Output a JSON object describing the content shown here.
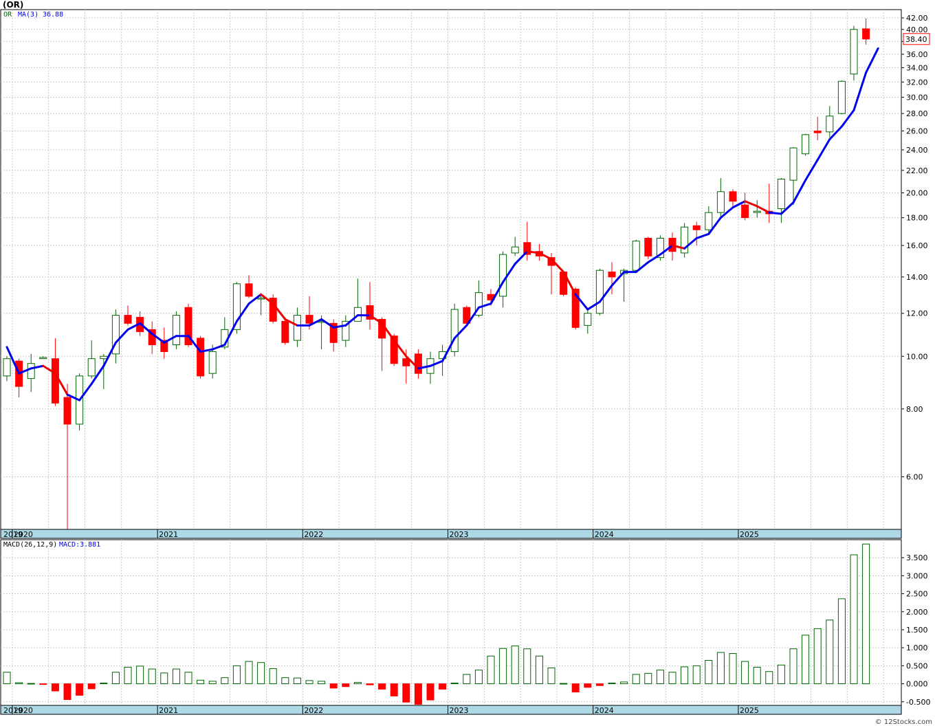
{
  "header": {
    "symbol": "(OR)"
  },
  "footer": {
    "watermark": "© 12Stocks.com"
  },
  "chart_data": [
    {
      "type": "candlestick",
      "legend": {
        "symbol": "OR",
        "ma_label": "MA(3)",
        "ma_value": "36.88"
      },
      "last_price_label": "38.40",
      "scale": "log",
      "ylim": [
        4.8,
        43.5
      ],
      "y_ticks": [
        "6.00",
        "8.00",
        "10.00",
        "12.00",
        "14.00",
        "16.00",
        "18.00",
        "20.00",
        "22.00",
        "24.00",
        "26.00",
        "28.00",
        "30.00",
        "32.00",
        "34.00",
        "36.00",
        "38.00",
        "40.00",
        "42.00"
      ],
      "x_labels": [
        "2019",
        "2020",
        "2021",
        "2022",
        "2023",
        "2024",
        "2025"
      ],
      "grid": true,
      "colors": {
        "up": "#006400",
        "down": "#ff0000",
        "ma_up": "#0000ee",
        "ma_down": "#ee0000",
        "band": "#add8e6"
      },
      "candles": [
        {
          "o": 9.2,
          "h": 10.0,
          "l": 9.0,
          "c": 9.9
        },
        {
          "o": 9.8,
          "h": 9.9,
          "l": 8.4,
          "c": 8.8
        },
        {
          "o": 9.1,
          "h": 10.1,
          "l": 8.6,
          "c": 9.7
        },
        {
          "o": 9.9,
          "h": 10.0,
          "l": 9.9,
          "c": 9.95
        },
        {
          "o": 9.9,
          "h": 10.8,
          "l": 8.1,
          "c": 8.2
        },
        {
          "o": 8.4,
          "h": 8.9,
          "l": 4.8,
          "c": 7.5
        },
        {
          "o": 7.5,
          "h": 9.3,
          "l": 7.3,
          "c": 9.2
        },
        {
          "o": 9.2,
          "h": 10.7,
          "l": 9.1,
          "c": 9.9
        },
        {
          "o": 9.9,
          "h": 10.1,
          "l": 8.7,
          "c": 10.0
        },
        {
          "o": 10.1,
          "h": 12.2,
          "l": 9.7,
          "c": 11.9
        },
        {
          "o": 11.9,
          "h": 12.4,
          "l": 11.4,
          "c": 11.5
        },
        {
          "o": 11.8,
          "h": 12.1,
          "l": 10.9,
          "c": 11.1
        },
        {
          "o": 11.2,
          "h": 11.6,
          "l": 10.1,
          "c": 10.5
        },
        {
          "o": 10.7,
          "h": 11.3,
          "l": 9.9,
          "c": 10.2
        },
        {
          "o": 10.5,
          "h": 12.1,
          "l": 10.3,
          "c": 11.9
        },
        {
          "o": 12.3,
          "h": 12.5,
          "l": 10.4,
          "c": 10.5
        },
        {
          "o": 10.8,
          "h": 10.9,
          "l": 9.1,
          "c": 9.2
        },
        {
          "o": 9.3,
          "h": 10.5,
          "l": 9.1,
          "c": 10.2
        },
        {
          "o": 10.4,
          "h": 11.8,
          "l": 10.3,
          "c": 11.2
        },
        {
          "o": 11.2,
          "h": 13.7,
          "l": 11.0,
          "c": 13.6
        },
        {
          "o": 13.6,
          "h": 14.1,
          "l": 12.8,
          "c": 12.9
        },
        {
          "o": 12.8,
          "h": 13.0,
          "l": 11.9,
          "c": 12.8
        },
        {
          "o": 12.8,
          "h": 13.0,
          "l": 11.5,
          "c": 11.6
        },
        {
          "o": 11.6,
          "h": 11.8,
          "l": 10.5,
          "c": 10.6
        },
        {
          "o": 10.7,
          "h": 12.3,
          "l": 10.4,
          "c": 11.9
        },
        {
          "o": 11.9,
          "h": 12.9,
          "l": 11.2,
          "c": 11.5
        },
        {
          "o": 11.6,
          "h": 11.9,
          "l": 10.3,
          "c": 11.6
        },
        {
          "o": 11.5,
          "h": 11.7,
          "l": 10.2,
          "c": 10.6
        },
        {
          "o": 10.7,
          "h": 11.9,
          "l": 10.4,
          "c": 11.6
        },
        {
          "o": 11.6,
          "h": 13.9,
          "l": 11.6,
          "c": 12.3
        },
        {
          "o": 12.4,
          "h": 13.7,
          "l": 11.2,
          "c": 11.7
        },
        {
          "o": 11.7,
          "h": 11.8,
          "l": 9.4,
          "c": 10.8
        },
        {
          "o": 10.9,
          "h": 11.0,
          "l": 9.6,
          "c": 9.7
        },
        {
          "o": 9.9,
          "h": 10.3,
          "l": 8.9,
          "c": 9.6
        },
        {
          "o": 10.1,
          "h": 10.3,
          "l": 9.1,
          "c": 9.3
        },
        {
          "o": 9.3,
          "h": 10.2,
          "l": 8.9,
          "c": 9.9
        },
        {
          "o": 9.9,
          "h": 10.5,
          "l": 9.2,
          "c": 10.2
        },
        {
          "o": 10.2,
          "h": 12.5,
          "l": 10.0,
          "c": 12.2
        },
        {
          "o": 12.3,
          "h": 12.4,
          "l": 11.4,
          "c": 11.5
        },
        {
          "o": 11.9,
          "h": 13.8,
          "l": 11.8,
          "c": 13.1
        },
        {
          "o": 13.0,
          "h": 13.3,
          "l": 12.4,
          "c": 12.7
        },
        {
          "o": 12.9,
          "h": 15.6,
          "l": 12.3,
          "c": 15.4
        },
        {
          "o": 15.5,
          "h": 16.6,
          "l": 15.3,
          "c": 15.9
        },
        {
          "o": 16.2,
          "h": 17.7,
          "l": 15.0,
          "c": 15.4
        },
        {
          "o": 15.6,
          "h": 16.1,
          "l": 15.0,
          "c": 15.3
        },
        {
          "o": 15.2,
          "h": 15.5,
          "l": 13.0,
          "c": 14.7
        },
        {
          "o": 14.3,
          "h": 14.3,
          "l": 12.9,
          "c": 13.0
        },
        {
          "o": 13.3,
          "h": 13.4,
          "l": 11.2,
          "c": 11.3
        },
        {
          "o": 11.4,
          "h": 12.2,
          "l": 11.0,
          "c": 12.0
        },
        {
          "o": 12.0,
          "h": 14.5,
          "l": 11.9,
          "c": 14.4
        },
        {
          "o": 14.3,
          "h": 14.9,
          "l": 13.0,
          "c": 14.0
        },
        {
          "o": 14.2,
          "h": 14.5,
          "l": 12.6,
          "c": 14.4
        },
        {
          "o": 14.4,
          "h": 16.4,
          "l": 14.3,
          "c": 16.3
        },
        {
          "o": 16.5,
          "h": 16.6,
          "l": 15.1,
          "c": 15.3
        },
        {
          "o": 15.2,
          "h": 16.7,
          "l": 15.0,
          "c": 16.5
        },
        {
          "o": 16.5,
          "h": 16.9,
          "l": 15.0,
          "c": 15.6
        },
        {
          "o": 15.5,
          "h": 17.6,
          "l": 15.2,
          "c": 17.3
        },
        {
          "o": 17.4,
          "h": 17.7,
          "l": 16.0,
          "c": 17.1
        },
        {
          "o": 17.1,
          "h": 18.9,
          "l": 16.9,
          "c": 18.4
        },
        {
          "o": 18.4,
          "h": 21.3,
          "l": 18.0,
          "c": 20.1
        },
        {
          "o": 20.1,
          "h": 20.3,
          "l": 18.9,
          "c": 19.3
        },
        {
          "o": 19.0,
          "h": 20.0,
          "l": 17.8,
          "c": 18.0
        },
        {
          "o": 18.4,
          "h": 19.4,
          "l": 18.0,
          "c": 18.5
        },
        {
          "o": 18.5,
          "h": 20.8,
          "l": 17.6,
          "c": 18.3
        },
        {
          "o": 18.7,
          "h": 21.3,
          "l": 17.6,
          "c": 21.2
        },
        {
          "o": 21.1,
          "h": 24.3,
          "l": 19.0,
          "c": 24.2
        },
        {
          "o": 23.6,
          "h": 25.7,
          "l": 23.4,
          "c": 25.6
        },
        {
          "o": 26.0,
          "h": 27.6,
          "l": 25.0,
          "c": 25.8
        },
        {
          "o": 25.9,
          "h": 28.9,
          "l": 25.3,
          "c": 27.7
        },
        {
          "o": 28.0,
          "h": 32.2,
          "l": 27.9,
          "c": 32.1
        },
        {
          "o": 33.1,
          "h": 40.6,
          "l": 32.2,
          "c": 40.0
        },
        {
          "o": 40.1,
          "h": 41.9,
          "l": 37.5,
          "c": 38.4
        }
      ],
      "ma": [
        10.4,
        9.3,
        9.5,
        9.6,
        9.3,
        8.5,
        8.3,
        8.9,
        9.6,
        10.6,
        11.2,
        11.5,
        11.0,
        10.6,
        10.9,
        10.9,
        10.2,
        10.3,
        10.5,
        11.6,
        12.5,
        13.0,
        12.5,
        11.7,
        11.4,
        11.4,
        11.7,
        11.3,
        11.4,
        11.9,
        11.9,
        11.5,
        10.7,
        10.0,
        9.5,
        9.6,
        9.8,
        10.8,
        11.4,
        12.3,
        12.5,
        13.7,
        14.8,
        15.6,
        15.5,
        15.1,
        14.3,
        13.0,
        12.2,
        12.6,
        13.5,
        14.3,
        14.3,
        14.9,
        15.4,
        16.0,
        15.8,
        16.5,
        16.8,
        18.0,
        18.8,
        19.3,
        18.9,
        18.4,
        18.3,
        19.2,
        21.1,
        23.0,
        25.1,
        26.5,
        28.4,
        33.3,
        36.9
      ],
      "ma_colors": [
        "down",
        "up",
        "up",
        "up",
        "down",
        "down",
        "up",
        "up",
        "up",
        "up",
        "up",
        "up",
        "up",
        "up",
        "up",
        "up",
        "up",
        "up",
        "up",
        "up",
        "up",
        "up",
        "down",
        "down",
        "down",
        "up",
        "up",
        "up",
        "up",
        "up",
        "up",
        "down",
        "down",
        "down",
        "down",
        "up",
        "up",
        "up",
        "up",
        "up",
        "up",
        "up",
        "up",
        "up",
        "down",
        "down",
        "down",
        "down",
        "up",
        "up",
        "up",
        "up",
        "up",
        "up",
        "up",
        "up",
        "down",
        "up",
        "up",
        "up",
        "up",
        "up",
        "down",
        "down",
        "up",
        "up",
        "up",
        "up",
        "up",
        "up",
        "up",
        "up",
        "up"
      ]
    },
    {
      "type": "bar",
      "legend": {
        "label": "MACD(26,12,9)",
        "value_label": "MACD:3.881"
      },
      "ylim": [
        -0.6,
        4.0
      ],
      "y_ticks": [
        "-0.500",
        "0.000",
        "0.500",
        "1.000",
        "1.500",
        "2.000",
        "2.500",
        "3.000",
        "3.500"
      ],
      "x_labels": [
        "2019",
        "2020",
        "2021",
        "2022",
        "2023",
        "2024",
        "2025"
      ],
      "colors": {
        "positive": "#006400",
        "negative": "#ff0000"
      },
      "values": [
        0.32,
        0.03,
        0.01,
        -0.01,
        -0.2,
        -0.44,
        -0.32,
        -0.14,
        0.02,
        0.32,
        0.46,
        0.49,
        0.41,
        0.3,
        0.41,
        0.32,
        0.1,
        0.07,
        0.17,
        0.5,
        0.62,
        0.59,
        0.42,
        0.17,
        0.16,
        0.09,
        0.07,
        -0.12,
        -0.08,
        0.04,
        -0.03,
        -0.15,
        -0.34,
        -0.51,
        -0.57,
        -0.45,
        -0.15,
        0.02,
        0.26,
        0.38,
        0.77,
        0.98,
        1.05,
        0.97,
        0.77,
        0.44,
        0.01,
        -0.23,
        -0.1,
        -0.05,
        0.02,
        0.05,
        0.26,
        0.29,
        0.38,
        0.32,
        0.47,
        0.5,
        0.65,
        0.87,
        0.84,
        0.62,
        0.46,
        0.34,
        0.52,
        0.97,
        1.35,
        1.53,
        1.77,
        2.36,
        3.58,
        3.88
      ]
    }
  ]
}
